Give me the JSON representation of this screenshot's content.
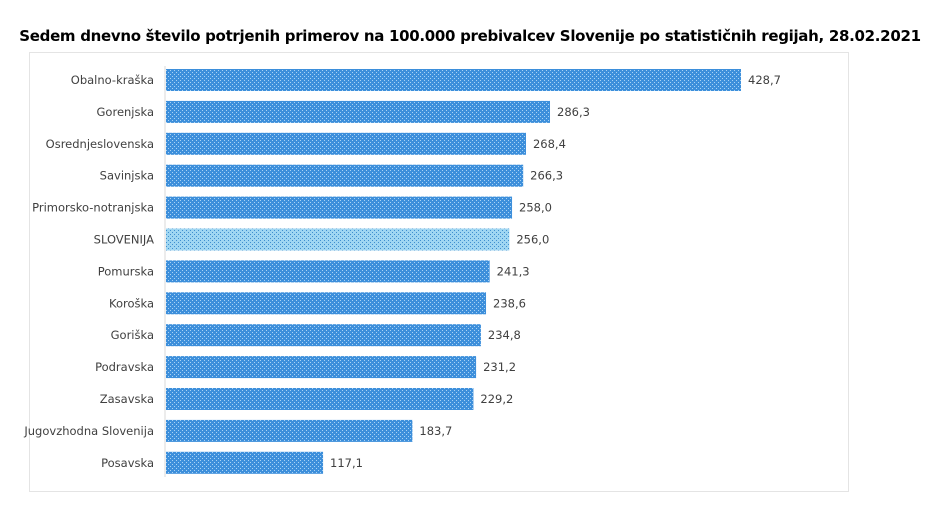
{
  "chart_data": {
    "type": "bar",
    "orientation": "horizontal",
    "title": "Sedem dnevno število potrjenih primerov na 100.000 prebivalcev Slovenije po statističnih regijah, 28.02.2021",
    "categories": [
      "Obalno-kraška",
      "Gorenjska",
      "Osrednjeslovenska",
      "Savinjska",
      "Primorsko-notranjska",
      "SLOVENIJA",
      "Pomurska",
      "Koroška",
      "Goriška",
      "Podravska",
      "Zasavska",
      "Jugovzhodna Slovenija",
      "Posavska"
    ],
    "values": [
      428.7,
      286.3,
      268.4,
      266.3,
      258.0,
      256.0,
      241.3,
      238.6,
      234.8,
      231.2,
      229.2,
      183.7,
      117.1
    ],
    "value_labels": [
      "428,7",
      "286,3",
      "268,4",
      "266,3",
      "258,0",
      "256,0",
      "241,3",
      "238,6",
      "234,8",
      "231,2",
      "229,2",
      "183,7",
      "117,1"
    ],
    "highlight_category": "SLOVENIJA",
    "colors": {
      "bar": "#3b8fd9",
      "highlight": "#8fcdf0"
    },
    "xaxis_visible": false,
    "grid": false
  }
}
